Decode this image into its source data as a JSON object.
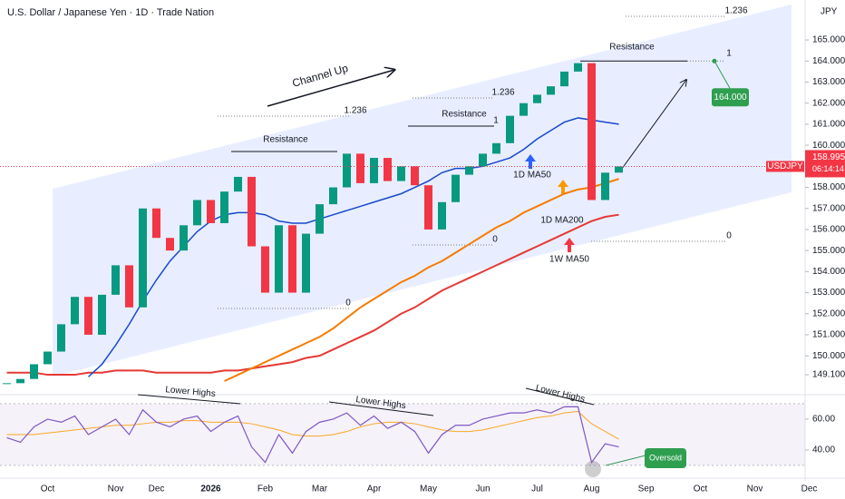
{
  "chart_data": [
    {
      "type": "candlestick",
      "title": "U.S. Dollar / Japanese Yen · 1D · Trade Nation",
      "currency": "JPY",
      "countdown": "06:14:14",
      "categories": [
        null,
        null,
        null,
        "Oct",
        null,
        null,
        null,
        null,
        "Nov",
        null,
        null,
        "Dec",
        null,
        null,
        null,
        "2026",
        null,
        null,
        null,
        "Feb",
        null,
        null,
        null,
        "Mar",
        null,
        null,
        null,
        "Apr",
        null,
        null,
        null,
        "May",
        null,
        null,
        null,
        "Jun",
        null,
        null,
        null,
        "Jul",
        null,
        null,
        null,
        "Aug",
        null,
        null,
        null,
        "Sep",
        null,
        null,
        null,
        "Oct",
        null,
        null,
        null,
        "Nov",
        null,
        null,
        null,
        "Dec"
      ],
      "up_color": "#089981",
      "down_color": "#f23645",
      "series": [
        {
          "name": "USDJPY",
          "color": "#f23645",
          "values": [
            148.7,
            148.9,
            149.6,
            150.2,
            151.5,
            152.8,
            151.0,
            152.9,
            154.3,
            152.3,
            157.0,
            155.6,
            155.0,
            156.2,
            157.4,
            156.3,
            157.8,
            158.5,
            155.2,
            153.0,
            156.2,
            153.0,
            155.8,
            157.2,
            158.0,
            159.6,
            158.2,
            159.4,
            158.3,
            159.0,
            158.1,
            156.0,
            157.3,
            158.6,
            159.0,
            159.6,
            160.1,
            161.4,
            162.0,
            162.4,
            162.8,
            163.5,
            163.9,
            157.4,
            158.7,
            158.995,
            null,
            null,
            null,
            null,
            null,
            null,
            null,
            null,
            null,
            null,
            null,
            null,
            null,
            null
          ]
        },
        {
          "name": "1D MA50",
          "color": "#1848cc",
          "values": [
            null,
            null,
            null,
            null,
            null,
            null,
            149.0,
            149.6,
            150.5,
            151.5,
            152.6,
            153.6,
            154.5,
            155.2,
            155.9,
            156.4,
            156.7,
            156.8,
            156.8,
            156.7,
            156.4,
            156.3,
            156.3,
            156.5,
            156.7,
            156.9,
            157.1,
            157.3,
            157.5,
            157.7,
            158.0,
            158.3,
            158.7,
            158.9,
            158.9,
            159.0,
            159.2,
            159.4,
            159.8,
            160.3,
            160.7,
            161.1,
            161.3,
            161.2,
            161.1,
            161.0,
            null,
            null,
            null,
            null,
            null,
            null,
            null,
            null,
            null,
            null,
            null,
            null,
            null,
            null
          ]
        },
        {
          "name": "1D MA200",
          "color": "#f57c00",
          "values": [
            null,
            null,
            null,
            null,
            null,
            null,
            null,
            null,
            null,
            null,
            null,
            null,
            null,
            null,
            null,
            null,
            148.8,
            149.1,
            149.4,
            149.7,
            150.0,
            150.3,
            150.6,
            150.9,
            151.3,
            151.8,
            152.3,
            152.7,
            153.1,
            153.5,
            153.8,
            154.2,
            154.5,
            154.9,
            155.3,
            155.7,
            156.1,
            156.4,
            156.8,
            157.1,
            157.4,
            157.7,
            157.9,
            158.0,
            158.2,
            158.4,
            null,
            null,
            null,
            null,
            null,
            null,
            null,
            null,
            null,
            null,
            null,
            null,
            null,
            null
          ]
        },
        {
          "name": "1W MA50",
          "color": "#e53935",
          "values": [
            149.2,
            149.2,
            149.2,
            149.1,
            149.1,
            149.1,
            149.2,
            149.2,
            149.3,
            149.3,
            149.3,
            149.2,
            149.2,
            149.2,
            149.2,
            149.2,
            149.3,
            149.3,
            149.4,
            149.5,
            149.6,
            149.7,
            149.9,
            150.0,
            150.3,
            150.6,
            150.9,
            151.2,
            151.6,
            152.0,
            152.3,
            152.7,
            153.1,
            153.4,
            153.7,
            154.0,
            154.3,
            154.6,
            154.9,
            155.2,
            155.5,
            155.8,
            156.1,
            156.4,
            156.6,
            156.7,
            null,
            null,
            null,
            null,
            null,
            null,
            null,
            null,
            null,
            null,
            null,
            null,
            null,
            null
          ]
        }
      ],
      "ylim": [
        148.37,
        166.9
      ],
      "yticks": [
        {
          "value": 149.1,
          "label": "149.100"
        },
        {
          "value": 150,
          "label": "150.000"
        },
        {
          "value": 151,
          "label": "151.000"
        },
        {
          "value": 152,
          "label": "152.000"
        },
        {
          "value": 153,
          "label": "153.000"
        },
        {
          "value": 154,
          "label": "154.000"
        },
        {
          "value": 155,
          "label": "155.000"
        },
        {
          "value": 156,
          "label": "156.000"
        },
        {
          "value": 157,
          "label": "157.000"
        },
        {
          "value": 158,
          "label": "158.000"
        },
        {
          "value": 160,
          "label": "160.000"
        },
        {
          "value": 161,
          "label": "161.000"
        },
        {
          "value": 162,
          "label": "162.000"
        },
        {
          "value": 163,
          "label": "163.000"
        },
        {
          "value": 164,
          "label": "164.000"
        },
        {
          "value": 165,
          "label": "165.000"
        }
      ],
      "grid": false,
      "target": {
        "value": 164,
        "label": "164.000"
      },
      "annotations": [
        "Channel Up",
        "Resistance",
        "Resistance",
        "Resistance",
        "1.236",
        "1.236",
        "1.236",
        "1",
        "1",
        "0",
        "0",
        "0"
      ]
    },
    {
      "type": "line",
      "series": [
        {
          "color": "#7e57c2",
          "values": [
            48,
            45,
            55,
            60,
            58,
            62,
            50,
            55,
            60,
            50,
            66,
            58,
            55,
            60,
            62,
            52,
            58,
            62,
            42,
            32,
            50,
            38,
            52,
            58,
            60,
            64,
            56,
            62,
            54,
            58,
            52,
            38,
            50,
            56,
            56,
            60,
            62,
            64,
            64,
            66,
            64,
            68,
            68,
            32,
            44,
            42,
            null,
            null,
            null,
            null,
            null,
            null,
            null,
            null,
            null,
            null,
            null,
            null,
            null,
            null
          ]
        },
        {
          "color": "#f9a825",
          "values": [
            50,
            50,
            50,
            51,
            52,
            53,
            54,
            55,
            56,
            56,
            57,
            58,
            58,
            59,
            59,
            58,
            58,
            58,
            57,
            55,
            53,
            50,
            49,
            49,
            50,
            52,
            55,
            57,
            58,
            58,
            57,
            55,
            53,
            52,
            52,
            53,
            55,
            57,
            59,
            61,
            62,
            64,
            65,
            57,
            52,
            47,
            null,
            null,
            null,
            null,
            null,
            null,
            null,
            null,
            null,
            null,
            null,
            null,
            null,
            null
          ]
        }
      ],
      "ylim": [
        25.9,
        72.9
      ],
      "yticks": [
        {
          "value": 60,
          "label": "60.00"
        },
        {
          "value": 40,
          "label": "40.00"
        }
      ],
      "band": [
        30,
        70
      ],
      "annotations": [
        "Lower Highs",
        "Lower Highs",
        "Lower Highs",
        "Oversold"
      ]
    }
  ]
}
